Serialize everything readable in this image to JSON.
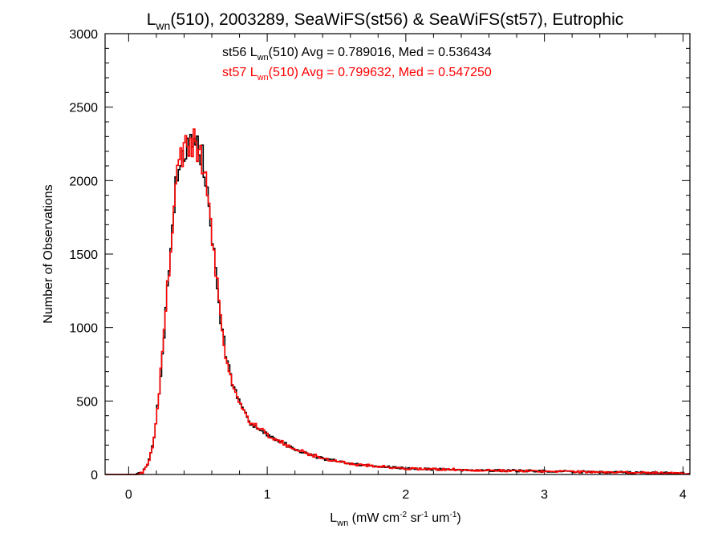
{
  "title": {
    "prefix": "L",
    "sub": "wn",
    "rest": "(510), 2003289, SeaWiFS(st56) & SeaWiFS(st57), Eutrophic"
  },
  "stats": {
    "st56": {
      "prefix": "st56 L",
      "sub": "wn",
      "rest": "(510) Avg = 0.789016, Med = 0.536434"
    },
    "st57": {
      "prefix": "st57 L",
      "sub": "wn",
      "rest": "(510) Avg = 0.799632, Med = 0.547250"
    }
  },
  "ylabel": "Number of Observations",
  "xlabel": {
    "L": "L",
    "wn": "wn",
    "a": " (mW cm",
    "b": "-2",
    "c": " sr",
    "d": "-1",
    "e": " um",
    "f": "-1",
    "g": ")"
  },
  "colors": {
    "st56": "#000000",
    "st57": "#ff0000"
  },
  "chart_data": {
    "type": "histogram",
    "xlim": [
      -0.17,
      4.05
    ],
    "ylim": [
      0,
      3000
    ],
    "xticks": [
      0,
      1,
      2,
      3,
      4
    ],
    "xtick_labels": [
      "0",
      "1",
      "2",
      "3",
      "4"
    ],
    "yticks": [
      0,
      500,
      1000,
      1500,
      2000,
      2500,
      3000
    ],
    "ytick_labels": [
      "0",
      "500",
      "1000",
      "1500",
      "2000",
      "2500",
      "3000"
    ],
    "x_minor_per_major": 5,
    "y_minor_per_major": 5,
    "curve_points": {
      "x": [
        0.06,
        0.1,
        0.14,
        0.18,
        0.22,
        0.26,
        0.3,
        0.34,
        0.38,
        0.42,
        0.46,
        0.5,
        0.54,
        0.58,
        0.62,
        0.66,
        0.7,
        0.75,
        0.8,
        0.85,
        0.9,
        1.0,
        1.2,
        1.4,
        1.6,
        2.0,
        2.5,
        3.0,
        3.5,
        4.05
      ],
      "y": [
        0,
        15,
        70,
        220,
        560,
        1010,
        1520,
        1950,
        2170,
        2240,
        2260,
        2230,
        2120,
        1820,
        1450,
        1100,
        820,
        620,
        480,
        390,
        340,
        270,
        170,
        110,
        72,
        40,
        30,
        22,
        15,
        8
      ]
    },
    "series": [
      {
        "name": "st56",
        "color": "#000000",
        "jitter_seed": 7,
        "jitter_amp": 0.05
      },
      {
        "name": "st57",
        "color": "#ff0000",
        "jitter_seed": 19,
        "jitter_amp": 0.05
      }
    ]
  }
}
